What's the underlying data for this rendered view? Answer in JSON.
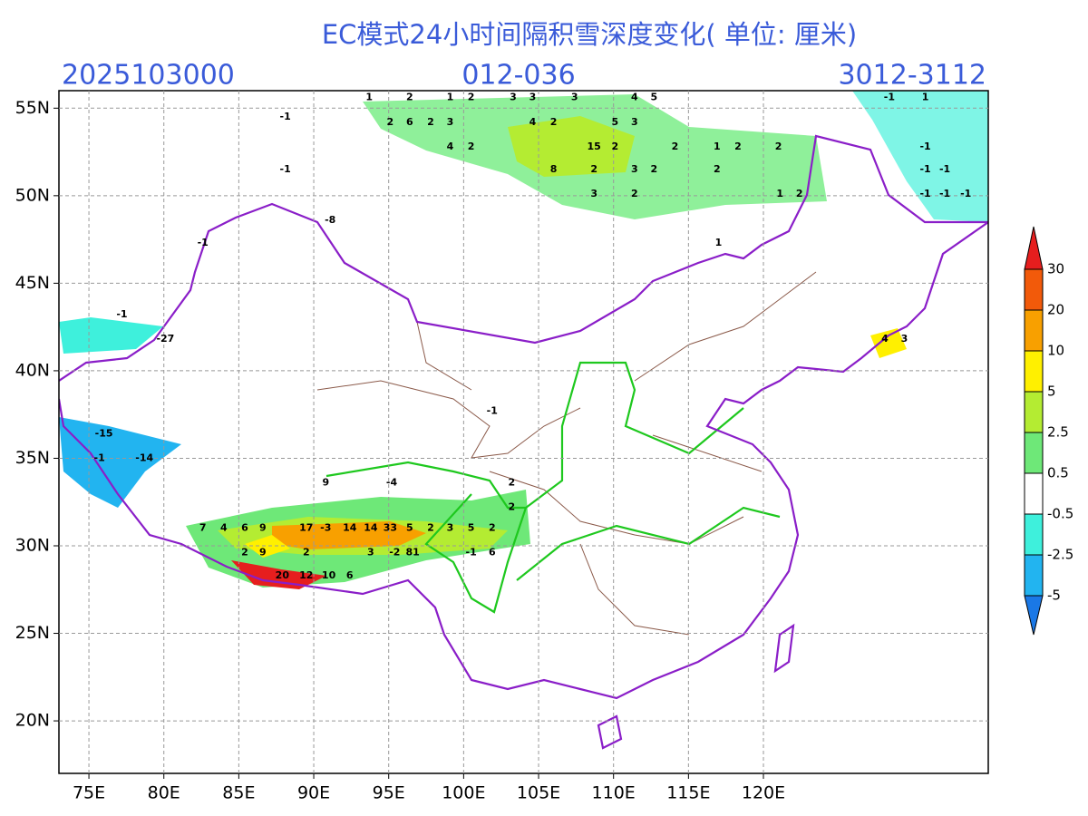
{
  "map": {
    "type": "contour-map",
    "title": "EC模式24小时间隔积雪深度变化( 单位: 厘米)",
    "init_time": "2025103000",
    "forecast_hours": "012-036",
    "valid_period": "3012-3112",
    "xlim": [
      73,
      135
    ],
    "ylim": [
      17,
      56
    ],
    "xticks": [
      {
        "value": 75,
        "label": "75E"
      },
      {
        "value": 80,
        "label": "80E"
      },
      {
        "value": 85,
        "label": "85E"
      },
      {
        "value": 90,
        "label": "90E"
      },
      {
        "value": 95,
        "label": "95E"
      },
      {
        "value": 100,
        "label": "100E"
      },
      {
        "value": 105,
        "label": "105E"
      },
      {
        "value": 110,
        "label": "110E"
      },
      {
        "value": 115,
        "label": "115E"
      },
      {
        "value": 120,
        "label": "120E"
      }
    ],
    "yticks": [
      {
        "value": 20,
        "label": "20N"
      },
      {
        "value": 25,
        "label": "25N"
      },
      {
        "value": 30,
        "label": "30N"
      },
      {
        "value": 35,
        "label": "35N"
      },
      {
        "value": 40,
        "label": "40N"
      },
      {
        "value": 45,
        "label": "45N"
      },
      {
        "value": 50,
        "label": "50N"
      },
      {
        "value": 55,
        "label": "55N"
      }
    ],
    "grid": true,
    "colorbar": {
      "levels": [
        -5,
        -2.5,
        -0.5,
        0.5,
        2.5,
        5,
        10,
        20,
        30
      ],
      "colors": [
        "#1a78e6",
        "#22b4f0",
        "#3ef0dc",
        "#ffffff",
        "#6ee878",
        "#b4ec32",
        "#fff000",
        "#f8a000",
        "#f25a0a",
        "#e61e1e"
      ]
    },
    "labels": [
      {
        "lon": 93.7,
        "lat": 55.6,
        "value": 1
      },
      {
        "lon": 96.4,
        "lat": 55.6,
        "value": 2
      },
      {
        "lon": 99.1,
        "lat": 55.6,
        "value": 1
      },
      {
        "lon": 100.5,
        "lat": 55.6,
        "value": 2
      },
      {
        "lon": 103.3,
        "lat": 55.6,
        "value": 3
      },
      {
        "lon": 104.6,
        "lat": 55.6,
        "value": 3
      },
      {
        "lon": 107.4,
        "lat": 55.6,
        "value": 3
      },
      {
        "lon": 111.4,
        "lat": 55.6,
        "value": 4
      },
      {
        "lon": 112.7,
        "lat": 55.6,
        "value": 5
      },
      {
        "lon": 95.1,
        "lat": 54.2,
        "value": 2
      },
      {
        "lon": 96.4,
        "lat": 54.2,
        "value": 6
      },
      {
        "lon": 97.8,
        "lat": 54.2,
        "value": 2
      },
      {
        "lon": 99.1,
        "lat": 54.2,
        "value": 3
      },
      {
        "lon": 104.6,
        "lat": 54.2,
        "value": 4
      },
      {
        "lon": 106.0,
        "lat": 54.2,
        "value": 2
      },
      {
        "lon": 110.1,
        "lat": 54.2,
        "value": 5
      },
      {
        "lon": 111.4,
        "lat": 54.2,
        "value": 3
      },
      {
        "lon": 99.1,
        "lat": 52.8,
        "value": 4
      },
      {
        "lon": 100.5,
        "lat": 52.8,
        "value": 2
      },
      {
        "lon": 108.7,
        "lat": 52.8,
        "value": 15
      },
      {
        "lon": 110.1,
        "lat": 52.8,
        "value": 2
      },
      {
        "lon": 114.1,
        "lat": 52.8,
        "value": 2
      },
      {
        "lon": 116.9,
        "lat": 52.8,
        "value": 1
      },
      {
        "lon": 118.3,
        "lat": 52.8,
        "value": 2
      },
      {
        "lon": 121.0,
        "lat": 52.8,
        "value": 2
      },
      {
        "lon": 106.0,
        "lat": 51.5,
        "value": 8
      },
      {
        "lon": 108.7,
        "lat": 51.5,
        "value": 2
      },
      {
        "lon": 111.4,
        "lat": 51.5,
        "value": 3
      },
      {
        "lon": 112.7,
        "lat": 51.5,
        "value": 2
      },
      {
        "lon": 116.9,
        "lat": 51.5,
        "value": 2
      },
      {
        "lon": 108.7,
        "lat": 50.1,
        "value": 3
      },
      {
        "lon": 111.4,
        "lat": 50.1,
        "value": 2
      },
      {
        "lon": 121.1,
        "lat": 50.1,
        "value": 1
      },
      {
        "lon": 122.4,
        "lat": 50.1,
        "value": 2
      },
      {
        "lon": 88.1,
        "lat": 54.5,
        "value": -1
      },
      {
        "lon": 88.1,
        "lat": 51.5,
        "value": -1
      },
      {
        "lon": 91.1,
        "lat": 48.6,
        "value": -8
      },
      {
        "lon": 80.1,
        "lat": 41.8,
        "value": -27
      },
      {
        "lon": 76.0,
        "lat": 36.4,
        "value": -15
      },
      {
        "lon": 78.7,
        "lat": 35.0,
        "value": -14
      },
      {
        "lon": 75.7,
        "lat": 35.0,
        "value": -1
      },
      {
        "lon": 77.2,
        "lat": 43.2,
        "value": -1
      },
      {
        "lon": 82.6,
        "lat": 47.3,
        "value": -1
      },
      {
        "lon": 101.9,
        "lat": 37.7,
        "value": -1
      },
      {
        "lon": 95.2,
        "lat": 33.6,
        "value": -4
      },
      {
        "lon": 90.8,
        "lat": 33.6,
        "value": 9
      },
      {
        "lon": 82.6,
        "lat": 31.0,
        "value": 7
      },
      {
        "lon": 84.0,
        "lat": 31.0,
        "value": 4
      },
      {
        "lon": 85.4,
        "lat": 31.0,
        "value": 6
      },
      {
        "lon": 86.6,
        "lat": 31.0,
        "value": 9
      },
      {
        "lon": 89.5,
        "lat": 31.0,
        "value": 17
      },
      {
        "lon": 90.8,
        "lat": 31.0,
        "value": -3
      },
      {
        "lon": 92.4,
        "lat": 31.0,
        "value": 14
      },
      {
        "lon": 93.8,
        "lat": 31.0,
        "value": 14
      },
      {
        "lon": 95.1,
        "lat": 31.0,
        "value": 33
      },
      {
        "lon": 96.4,
        "lat": 31.0,
        "value": 5
      },
      {
        "lon": 97.8,
        "lat": 31.0,
        "value": 2
      },
      {
        "lon": 99.1,
        "lat": 31.0,
        "value": 3
      },
      {
        "lon": 100.5,
        "lat": 31.0,
        "value": 5
      },
      {
        "lon": 101.9,
        "lat": 31.0,
        "value": 2
      },
      {
        "lon": 103.2,
        "lat": 33.6,
        "value": 2
      },
      {
        "lon": 103.2,
        "lat": 32.2,
        "value": 2
      },
      {
        "lon": 85.4,
        "lat": 29.6,
        "value": 2
      },
      {
        "lon": 86.6,
        "lat": 29.6,
        "value": 9
      },
      {
        "lon": 89.5,
        "lat": 29.6,
        "value": 2
      },
      {
        "lon": 93.8,
        "lat": 29.6,
        "value": 3
      },
      {
        "lon": 95.4,
        "lat": 29.6,
        "value": -2
      },
      {
        "lon": 96.6,
        "lat": 29.6,
        "value": 81
      },
      {
        "lon": 100.5,
        "lat": 29.6,
        "value": -1
      },
      {
        "lon": 101.9,
        "lat": 29.6,
        "value": 6
      },
      {
        "lon": 87.9,
        "lat": 28.3,
        "value": 20
      },
      {
        "lon": 89.5,
        "lat": 28.3,
        "value": 12
      },
      {
        "lon": 91.0,
        "lat": 28.3,
        "value": 10
      },
      {
        "lon": 92.4,
        "lat": 28.3,
        "value": 6
      },
      {
        "lon": 117.0,
        "lat": 47.3,
        "value": 1
      },
      {
        "lon": 128.1,
        "lat": 41.8,
        "value": 4
      },
      {
        "lon": 129.4,
        "lat": 41.8,
        "value": 3
      },
      {
        "lon": 130.8,
        "lat": 51.5,
        "value": -1
      },
      {
        "lon": 132.1,
        "lat": 51.5,
        "value": -1
      },
      {
        "lon": 130.8,
        "lat": 50.1,
        "value": -1
      },
      {
        "lon": 132.1,
        "lat": 50.1,
        "value": -1
      },
      {
        "lon": 133.5,
        "lat": 50.1,
        "value": -1
      },
      {
        "lon": 130.8,
        "lat": 52.8,
        "value": -1
      },
      {
        "lon": 128.4,
        "lat": 55.6,
        "value": -1
      },
      {
        "lon": 130.8,
        "lat": 55.6,
        "value": 1
      }
    ]
  }
}
